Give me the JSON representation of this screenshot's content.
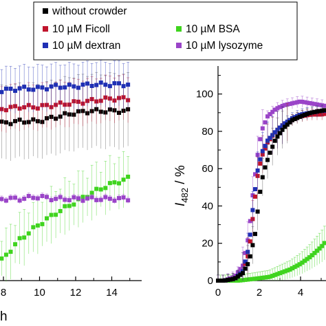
{
  "chart_data": [
    {
      "type": "scatter",
      "xlabel": "h",
      "ylabel": "",
      "x_ticks": [
        "8",
        "10",
        "12",
        "14"
      ],
      "xlim": [
        7.9,
        15.6
      ],
      "ylim": [
        0,
        105
      ],
      "grid": false,
      "legend_position": "top-center",
      "series": [
        {
          "name": "without crowder",
          "color": "#000000",
          "x": [
            7.9,
            8.9,
            9.9,
            10.9,
            11.9,
            12.9,
            13.9,
            14.9
          ],
          "y": [
            77,
            78,
            78,
            80,
            82,
            83,
            83,
            83
          ]
        },
        {
          "name": "10 µM Ficoll",
          "color": "#c0142c",
          "x": [
            7.9,
            8.9,
            9.9,
            10.9,
            11.9,
            12.9,
            13.9,
            14.9
          ],
          "y": [
            84,
            85,
            85,
            86,
            87,
            88,
            89,
            89
          ]
        },
        {
          "name": "10 µM dextran",
          "color": "#1f2fb4",
          "x": [
            7.9,
            8.9,
            9.9,
            10.9,
            11.9,
            12.9,
            13.9,
            14.9
          ],
          "y": [
            93,
            94,
            94,
            95,
            95,
            96,
            96,
            96
          ]
        },
        {
          "name": "10 µM BSA",
          "color": "#3fd41e",
          "x": [
            7.9,
            8.9,
            9.9,
            10.9,
            11.9,
            12.9,
            13.9,
            14.9
          ],
          "y": [
            10,
            20,
            27,
            33,
            38,
            43,
            47,
            50
          ]
        },
        {
          "name": "10 µM lysozyme",
          "color": "#9a44c8",
          "x": [
            7.9,
            8.9,
            9.9,
            10.9,
            11.9,
            12.9,
            13.9,
            14.9
          ],
          "y": [
            40,
            40,
            41,
            40,
            40,
            40,
            40,
            40
          ]
        }
      ]
    },
    {
      "type": "scatter",
      "xlabel": "",
      "ylabel": "I482 / %",
      "ylabel_main": "I",
      "ylabel_sub": "482",
      "ylabel_rest": " / %",
      "x_ticks": [
        "0",
        "2",
        "4"
      ],
      "y_ticks": [
        "0",
        "20",
        "40",
        "60",
        "80",
        "100"
      ],
      "xlim": [
        0,
        5.7
      ],
      "ylim": [
        0,
        115
      ],
      "grid": false,
      "series": [
        {
          "name": "without crowder",
          "color": "#000000",
          "x": [
            0.3,
            0.8,
            1.2,
            1.5,
            1.8,
            2.0,
            2.2,
            2.5,
            2.8,
            3.2,
            3.6,
            4.0,
            4.5,
            5.0,
            5.5
          ],
          "y": [
            0,
            1,
            4,
            10,
            25,
            45,
            58,
            68,
            76,
            82,
            86,
            88,
            90,
            91,
            92
          ]
        },
        {
          "name": "10 µM Ficoll",
          "color": "#c0142c",
          "x": [
            0.3,
            0.8,
            1.2,
            1.5,
            1.7,
            1.9,
            2.1,
            2.4,
            2.8,
            3.2,
            3.6,
            4.0,
            4.5,
            5.0,
            5.5
          ],
          "y": [
            0,
            1,
            5,
            15,
            35,
            55,
            66,
            74,
            80,
            84,
            86,
            88,
            89,
            89,
            90
          ]
        },
        {
          "name": "10 µM dextran",
          "color": "#1f2fb4",
          "x": [
            0.3,
            0.8,
            1.2,
            1.5,
            1.7,
            1.9,
            2.1,
            2.4,
            2.8,
            3.2,
            3.6,
            4.0,
            4.5,
            5.0,
            5.5
          ],
          "y": [
            0,
            1,
            5,
            18,
            40,
            58,
            68,
            75,
            80,
            84,
            87,
            89,
            90,
            91,
            91
          ]
        },
        {
          "name": "10 µM BSA",
          "color": "#3fd41e",
          "x": [
            0.3,
            1.0,
            1.8,
            2.5,
            3.0,
            3.5,
            4.0,
            4.5,
            5.0,
            5.3,
            5.6
          ],
          "y": [
            0,
            0,
            1,
            2,
            4,
            6,
            9,
            13,
            18,
            22,
            27
          ]
        },
        {
          "name": "10 µM lysozyme",
          "color": "#9a44c8",
          "x": [
            0.3,
            0.8,
            1.2,
            1.5,
            1.7,
            1.9,
            2.1,
            2.4,
            2.8,
            3.2,
            3.6,
            4.0,
            4.5,
            5.0,
            5.5
          ],
          "y": [
            0,
            2,
            8,
            25,
            48,
            66,
            80,
            88,
            92,
            94,
            95,
            96,
            95,
            94,
            93
          ]
        }
      ]
    }
  ]
}
